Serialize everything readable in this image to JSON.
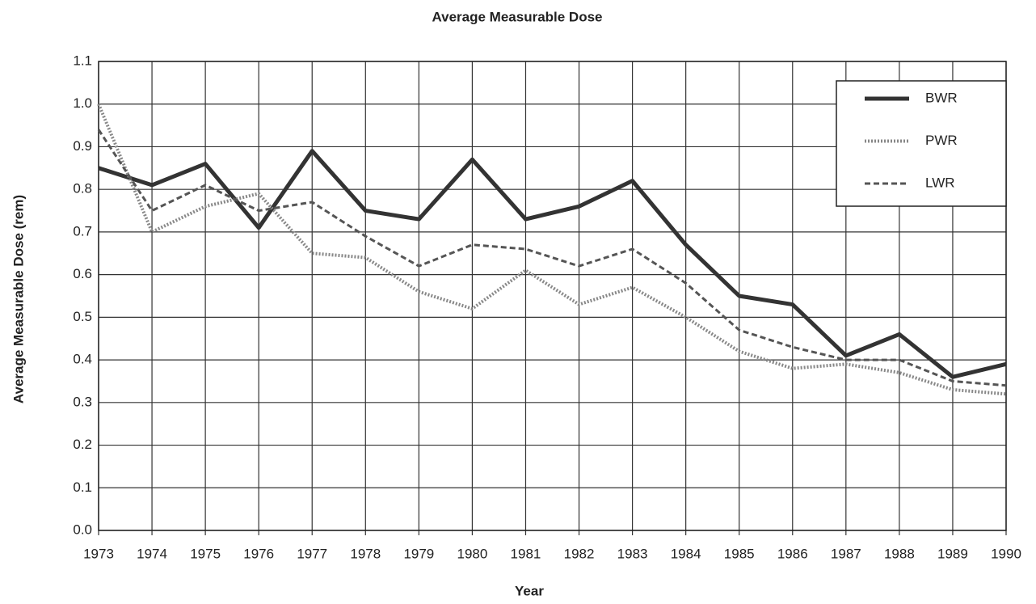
{
  "chart_data": {
    "type": "line",
    "title": "Average Measurable Dose",
    "xlabel": "Year",
    "ylabel": "Average Measurable Dose (rem)",
    "x": [
      1973,
      1974,
      1975,
      1976,
      1977,
      1978,
      1979,
      1980,
      1981,
      1982,
      1983,
      1984,
      1985,
      1986,
      1987,
      1988,
      1989,
      1990
    ],
    "series": [
      {
        "name": "BWR",
        "color": "#333333",
        "line_style": "solid",
        "values": [
          0.85,
          0.81,
          0.86,
          0.71,
          0.89,
          0.75,
          0.73,
          0.87,
          0.73,
          0.76,
          0.82,
          0.67,
          0.55,
          0.53,
          0.41,
          0.46,
          0.36,
          0.39
        ]
      },
      {
        "name": "PWR",
        "color": "#888888",
        "line_style": "cross",
        "values": [
          1.0,
          0.7,
          0.76,
          0.79,
          0.65,
          0.64,
          0.56,
          0.52,
          0.61,
          0.53,
          0.57,
          0.5,
          0.42,
          0.38,
          0.39,
          0.37,
          0.33,
          0.32
        ]
      },
      {
        "name": "LWR",
        "color": "#555555",
        "line_style": "dash",
        "values": [
          0.94,
          0.75,
          0.81,
          0.75,
          0.77,
          0.69,
          0.62,
          0.67,
          0.66,
          0.62,
          0.66,
          0.58,
          0.47,
          0.43,
          0.4,
          0.4,
          0.35,
          0.34
        ]
      }
    ],
    "xlim": [
      1973,
      1990
    ],
    "xticks": [
      1973,
      1974,
      1975,
      1976,
      1977,
      1978,
      1979,
      1980,
      1981,
      1982,
      1983,
      1984,
      1985,
      1986,
      1987,
      1988,
      1989,
      1990
    ],
    "ylim": [
      0,
      1.1
    ],
    "yticks": [
      {
        "value": 0,
        "label": "0.0"
      },
      0.1,
      0.2,
      0.3,
      0.4,
      0.5,
      0.6,
      0.7,
      0.8,
      0.9,
      {
        "value": 1,
        "label": "1.0"
      },
      1.1
    ],
    "grid": true,
    "legend": "upper right"
  }
}
